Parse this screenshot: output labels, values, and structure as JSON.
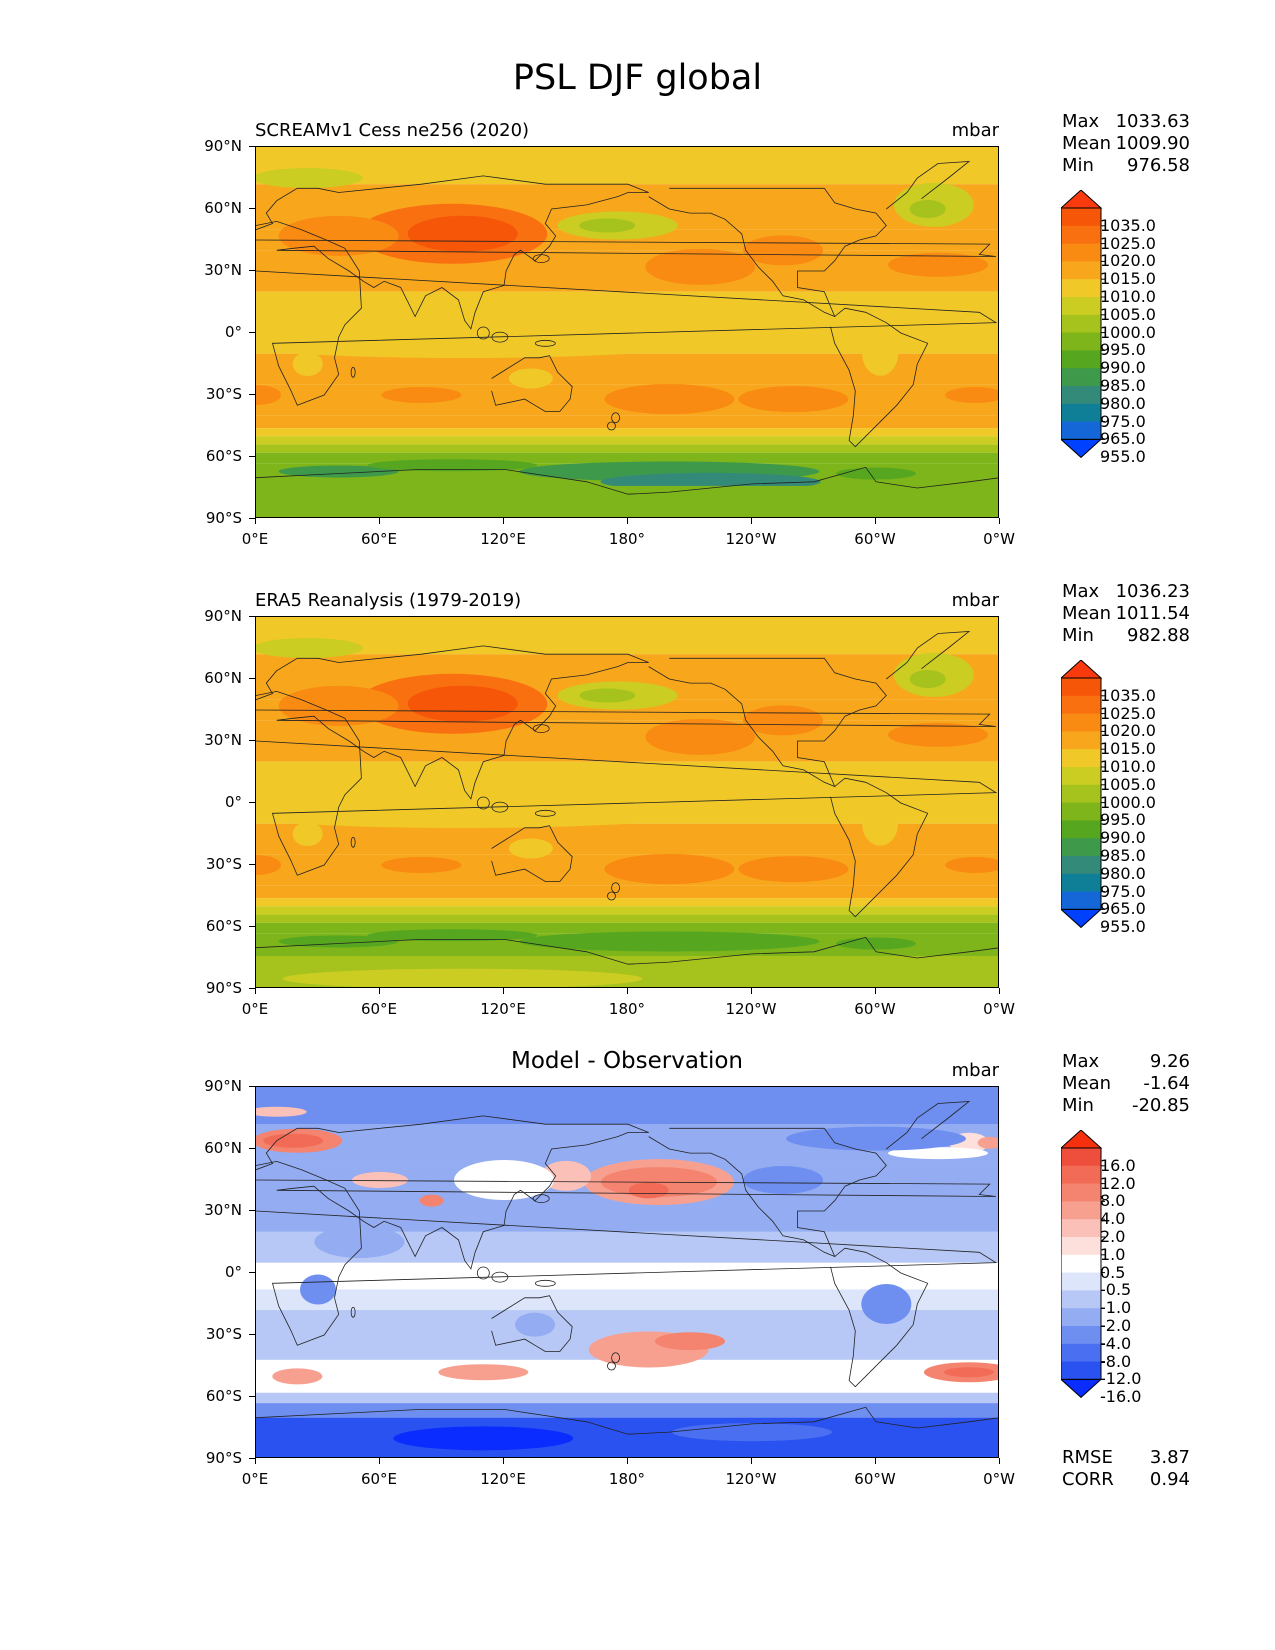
{
  "figure": {
    "title": "PSL DJF global"
  },
  "axes": {
    "lat_labels": [
      "90°N",
      "60°N",
      "30°N",
      "0°",
      "30°S",
      "60°S",
      "90°S"
    ],
    "lon_labels": [
      "0°E",
      "60°E",
      "120°E",
      "180°",
      "120°W",
      "60°W",
      "0°W"
    ]
  },
  "panels": [
    {
      "id": "model",
      "title": "SCREAMv1 Cess ne256 (2020)",
      "units": "mbar",
      "stats": {
        "max_label": "Max",
        "max": "1033.63",
        "mean_label": "Mean",
        "mean": "1009.90",
        "min_label": "Min",
        "min": "976.58"
      },
      "colorbar": {
        "labels": [
          "1035.0",
          "1025.0",
          "1020.0",
          "1015.0",
          "1010.0",
          "1005.0",
          "1000.0",
          "995.0",
          "990.0",
          "985.0",
          "980.0",
          "975.0",
          "965.0",
          "955.0"
        ]
      }
    },
    {
      "id": "obs",
      "title": "ERA5 Reanalysis (1979-2019)",
      "units": "mbar",
      "stats": {
        "max_label": "Max",
        "max": "1036.23",
        "mean_label": "Mean",
        "mean": "1011.54",
        "min_label": "Min",
        "min": "982.88"
      },
      "colorbar": {
        "labels": [
          "1035.0",
          "1025.0",
          "1020.0",
          "1015.0",
          "1010.0",
          "1005.0",
          "1000.0",
          "995.0",
          "990.0",
          "985.0",
          "980.0",
          "975.0",
          "965.0",
          "955.0"
        ]
      }
    },
    {
      "id": "diff",
      "title": "Model - Observation",
      "units": "mbar",
      "stats": {
        "max_label": "Max",
        "max": "9.26",
        "mean_label": "Mean",
        "mean": "-1.64",
        "min_label": "Min",
        "min": "-20.85"
      },
      "colorbar": {
        "labels": [
          "16.0",
          "12.0",
          "8.0",
          "4.0",
          "2.0",
          "1.0",
          "0.5",
          "-0.5",
          "-1.0",
          "-2.0",
          "-4.0",
          "-8.0",
          "-12.0",
          "-16.0"
        ]
      },
      "extra": {
        "rmse_label": "RMSE",
        "rmse": "3.87",
        "corr_label": "CORR",
        "corr": "0.94"
      }
    }
  ],
  "colors": {
    "psl": [
      "#0040ff",
      "#1566d6",
      "#0f7f98",
      "#338a78",
      "#3e9a4a",
      "#56a71f",
      "#7db51a",
      "#a6c21c",
      "#cbcd22",
      "#f0c928",
      "#f8a71c",
      "#f98a12",
      "#f97010",
      "#f65608",
      "#f93a0e"
    ],
    "diff": [
      "#0a2cff",
      "#2a52f0",
      "#4a6ff0",
      "#6e8ff0",
      "#93acf2",
      "#b7c8f6",
      "#dde5fb",
      "#ffffff",
      "#fde0dc",
      "#fbc1b8",
      "#f8a090",
      "#f4846f",
      "#f16b57",
      "#ee4e3c",
      "#f5300e"
    ]
  }
}
